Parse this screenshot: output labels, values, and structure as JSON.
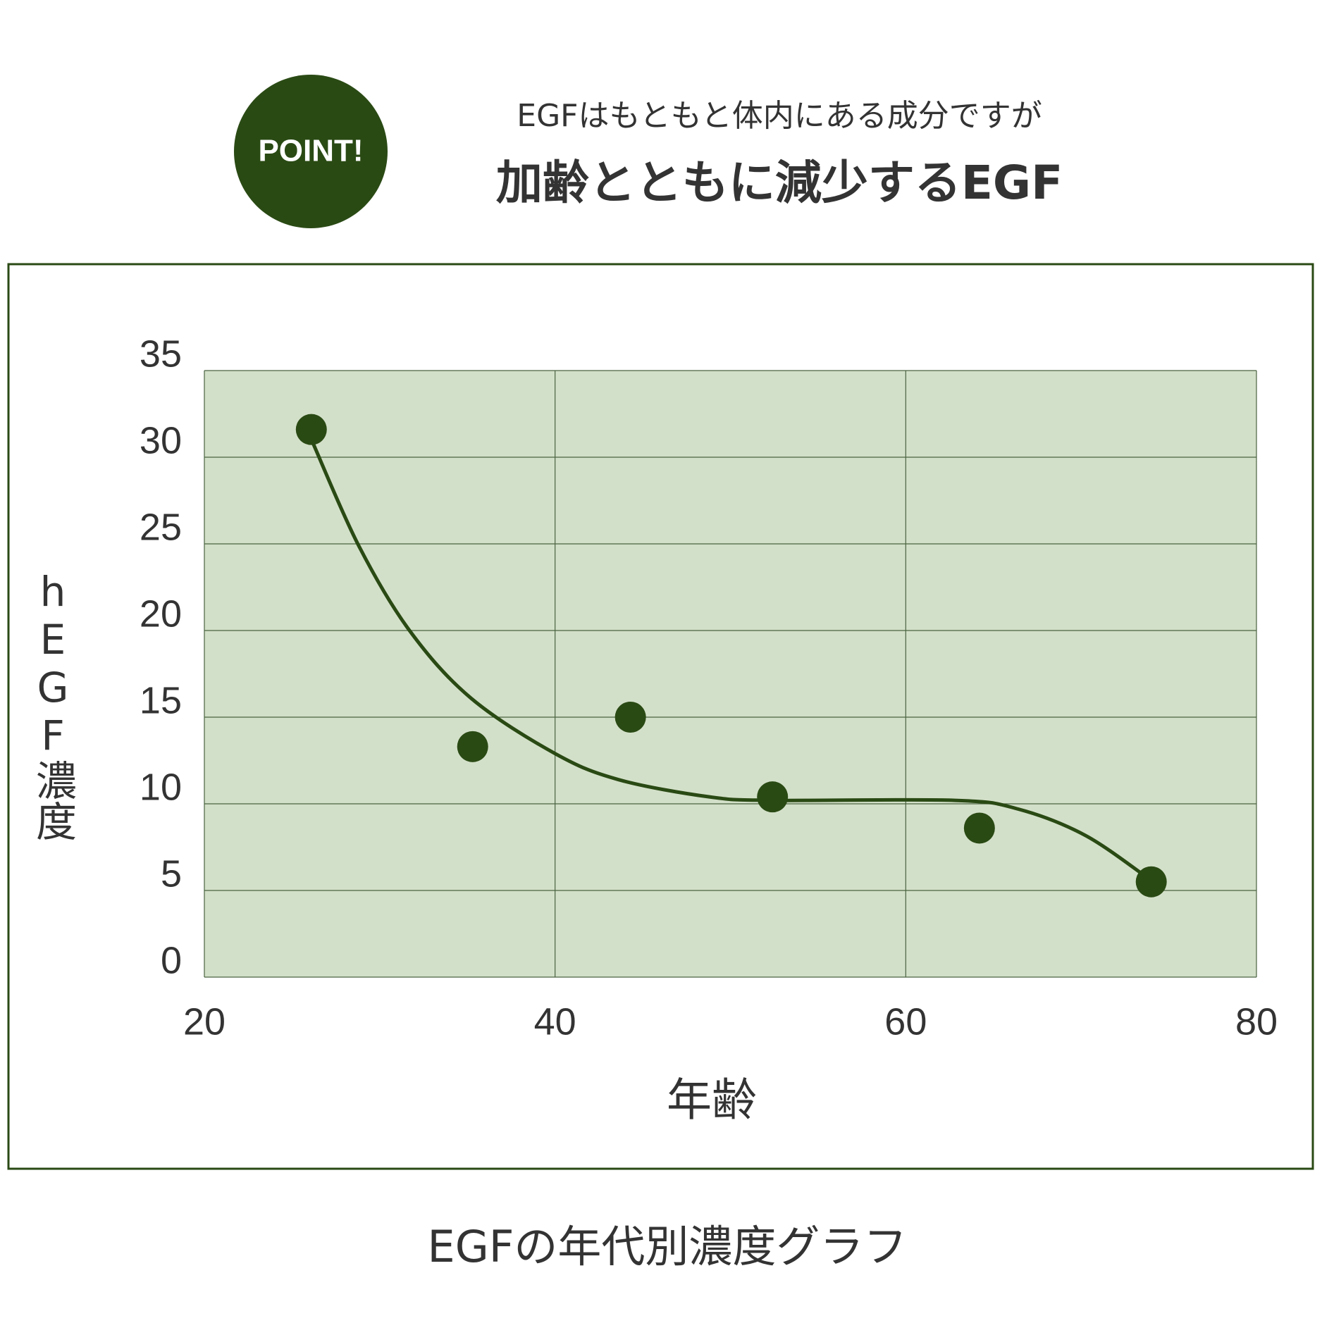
{
  "header": {
    "badge": "POINT!",
    "lead": "EGFはもともと体内にある成分ですが",
    "headline": "加齢とともに減少するEGF"
  },
  "chart_data": {
    "type": "scatter",
    "xlabel": "年齢",
    "ylabel": "hEGF濃度",
    "xlim": [
      20,
      80
    ],
    "xticks": [
      20,
      40,
      60,
      80
    ],
    "ylim": [
      0,
      35
    ],
    "yticks": [
      0,
      5,
      10,
      15,
      20,
      25,
      30,
      35
    ],
    "grid": true,
    "background": "#d3e0c9",
    "series": [
      {
        "type": "scatter",
        "color": "#2a4a14",
        "x": [
          26.1,
          35.3,
          44.3,
          52.4,
          64.2,
          74.0
        ],
        "values": [
          31.6,
          13.3,
          15.0,
          10.4,
          8.6,
          5.5
        ]
      },
      {
        "type": "line",
        "color": "#2a4a14",
        "x": [
          26.2,
          28.8,
          31.7,
          35.2,
          40,
          43.6,
          48.8,
          52.4,
          62.8,
          66.4,
          70.2,
          73.7
        ],
        "values": [
          30.8,
          24.9,
          20.0,
          16.1,
          12.9,
          11.4,
          10.4,
          10.2,
          10.2,
          9.7,
          8.2,
          5.8
        ]
      }
    ]
  },
  "caption": "EGFの年代別濃度グラフ"
}
